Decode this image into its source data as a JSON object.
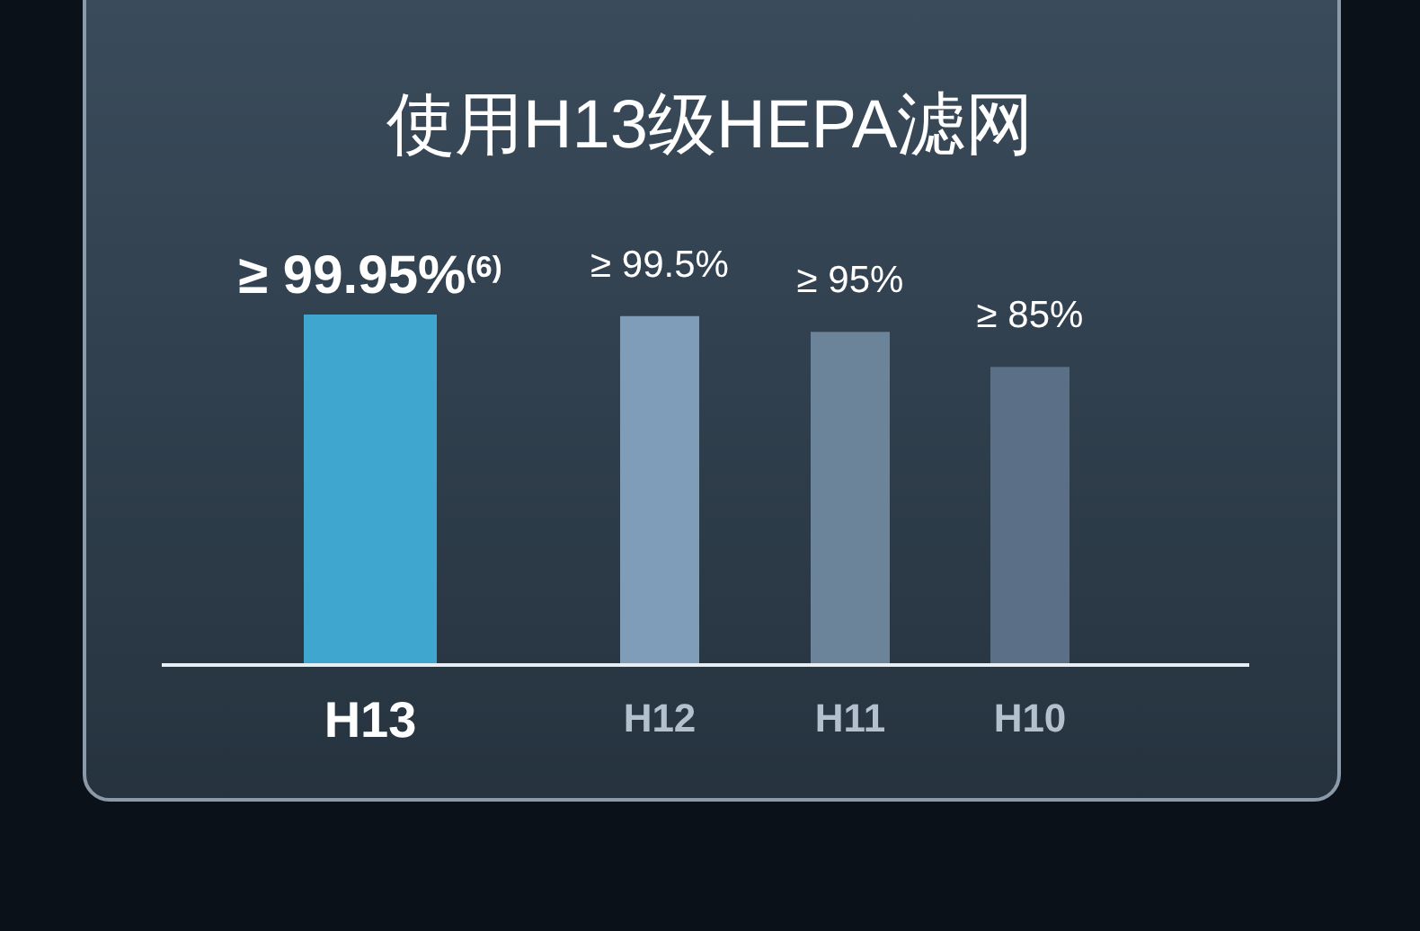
{
  "chart_data": {
    "type": "bar",
    "title": "使用H13级HEPA滤网",
    "categories": [
      "H13",
      "H12",
      "H11",
      "H10"
    ],
    "values": [
      99.95,
      99.5,
      95,
      85
    ],
    "colors": [
      "#3fa6cf",
      "#7f9cb8",
      "#6b8499",
      "#5b6f86"
    ],
    "value_labels": [
      "≥ 99.95%$^{(6)}$",
      "≥ 99.5%",
      "≥ 95%",
      "≥ 85%"
    ]
  }
}
